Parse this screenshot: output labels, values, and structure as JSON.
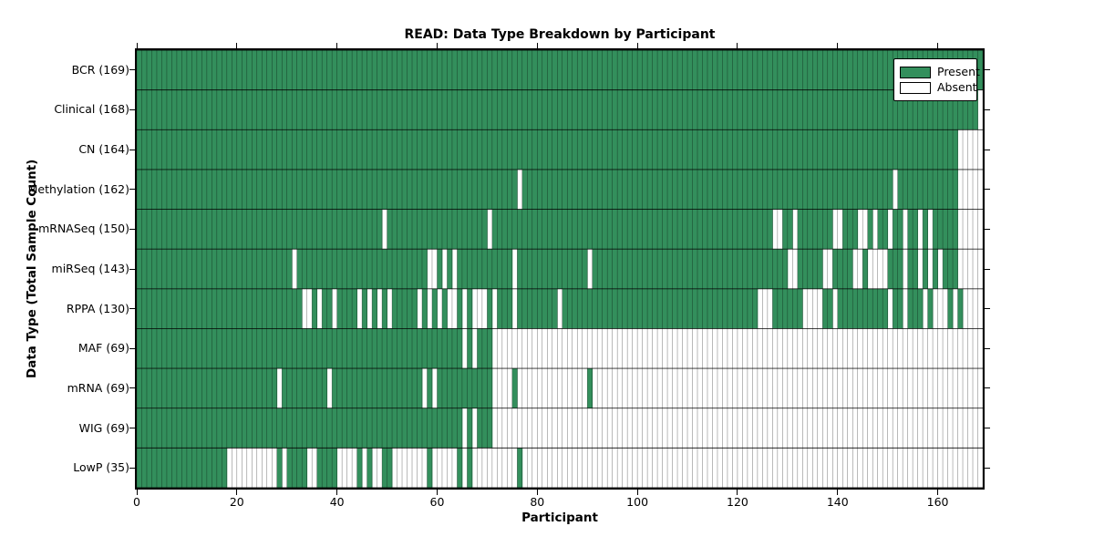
{
  "colors": {
    "present": "#338f5c",
    "absent": "#ffffff",
    "cell_grid": "rgba(0,0,0,0.55)",
    "row_divider": "rgba(0,0,0,0.85)",
    "frame": "#000000"
  },
  "chart_data": {
    "type": "heatmap",
    "title": "READ: Data Type Breakdown by Participant",
    "xlabel": "Participant",
    "ylabel": "Data Type (Total Sample Count)",
    "x_ticks": [
      0,
      20,
      40,
      60,
      80,
      100,
      120,
      140,
      160
    ],
    "x_range": [
      0,
      169
    ],
    "n_participants": 169,
    "grid": "cell-borders",
    "legend_position": "upper right",
    "legend": [
      {
        "label": "Present",
        "color": "#338f5c"
      },
      {
        "label": "Absent",
        "color": "#ffffff"
      }
    ],
    "rows": [
      {
        "label": "BCR (169)",
        "data_type": "BCR",
        "present_count": 169,
        "absent_ranges": []
      },
      {
        "label": "Clinical (168)",
        "data_type": "Clinical",
        "present_count": 168,
        "absent_ranges": [
          [
            168,
            168
          ]
        ]
      },
      {
        "label": "CN (164)",
        "data_type": "CN",
        "present_count": 164,
        "absent_ranges": [
          [
            164,
            168
          ]
        ]
      },
      {
        "label": "Methylation (162)",
        "data_type": "Methylation",
        "present_count": 162,
        "absent_ranges": [
          [
            76,
            76
          ],
          [
            151,
            151
          ],
          [
            164,
            168
          ]
        ]
      },
      {
        "label": "mRNASeq (150)",
        "data_type": "mRNASeq",
        "present_count": 150,
        "absent_ranges": [
          [
            49,
            49
          ],
          [
            70,
            70
          ],
          [
            127,
            128
          ],
          [
            131,
            131
          ],
          [
            139,
            140
          ],
          [
            144,
            145
          ],
          [
            147,
            147
          ],
          [
            150,
            150
          ],
          [
            153,
            153
          ],
          [
            156,
            156
          ],
          [
            158,
            158
          ],
          [
            164,
            168
          ]
        ]
      },
      {
        "label": "miRSeq (143)",
        "data_type": "miRSeq",
        "present_count": 143,
        "absent_ranges": [
          [
            31,
            31
          ],
          [
            58,
            59
          ],
          [
            61,
            61
          ],
          [
            63,
            63
          ],
          [
            75,
            75
          ],
          [
            90,
            90
          ],
          [
            130,
            131
          ],
          [
            137,
            138
          ],
          [
            143,
            144
          ],
          [
            146,
            149
          ],
          [
            153,
            153
          ],
          [
            156,
            156
          ],
          [
            158,
            158
          ],
          [
            160,
            160
          ],
          [
            164,
            168
          ]
        ]
      },
      {
        "label": "RPPA (130)",
        "data_type": "RPPA",
        "present_count": 130,
        "absent_ranges": [
          [
            33,
            34
          ],
          [
            36,
            36
          ],
          [
            39,
            39
          ],
          [
            44,
            44
          ],
          [
            46,
            46
          ],
          [
            48,
            48
          ],
          [
            50,
            50
          ],
          [
            56,
            56
          ],
          [
            58,
            58
          ],
          [
            60,
            60
          ],
          [
            62,
            63
          ],
          [
            65,
            65
          ],
          [
            67,
            69
          ],
          [
            71,
            71
          ],
          [
            75,
            75
          ],
          [
            84,
            84
          ],
          [
            124,
            126
          ],
          [
            133,
            136
          ],
          [
            139,
            139
          ],
          [
            150,
            150
          ],
          [
            153,
            153
          ],
          [
            157,
            157
          ],
          [
            159,
            161
          ],
          [
            163,
            163
          ],
          [
            165,
            168
          ]
        ]
      },
      {
        "label": "MAF (69)",
        "data_type": "MAF",
        "present_count": 69,
        "absent_ranges": [
          [
            65,
            65
          ],
          [
            67,
            67
          ],
          [
            71,
            168
          ]
        ]
      },
      {
        "label": "mRNA (69)",
        "data_type": "mRNA",
        "present_count": 69,
        "absent_ranges": [
          [
            28,
            28
          ],
          [
            38,
            38
          ],
          [
            57,
            57
          ],
          [
            59,
            59
          ],
          [
            71,
            74
          ],
          [
            76,
            89
          ],
          [
            91,
            168
          ]
        ]
      },
      {
        "label": "WIG (69)",
        "data_type": "WIG",
        "present_count": 69,
        "absent_ranges": [
          [
            65,
            65
          ],
          [
            67,
            67
          ],
          [
            71,
            168
          ]
        ]
      },
      {
        "label": "LowP (35)",
        "data_type": "LowP",
        "present_count": 35,
        "absent_ranges": [
          [
            18,
            27
          ],
          [
            29,
            29
          ],
          [
            34,
            35
          ],
          [
            40,
            43
          ],
          [
            45,
            45
          ],
          [
            47,
            48
          ],
          [
            51,
            57
          ],
          [
            59,
            63
          ],
          [
            65,
            65
          ],
          [
            67,
            75
          ],
          [
            77,
            168
          ]
        ]
      }
    ]
  }
}
